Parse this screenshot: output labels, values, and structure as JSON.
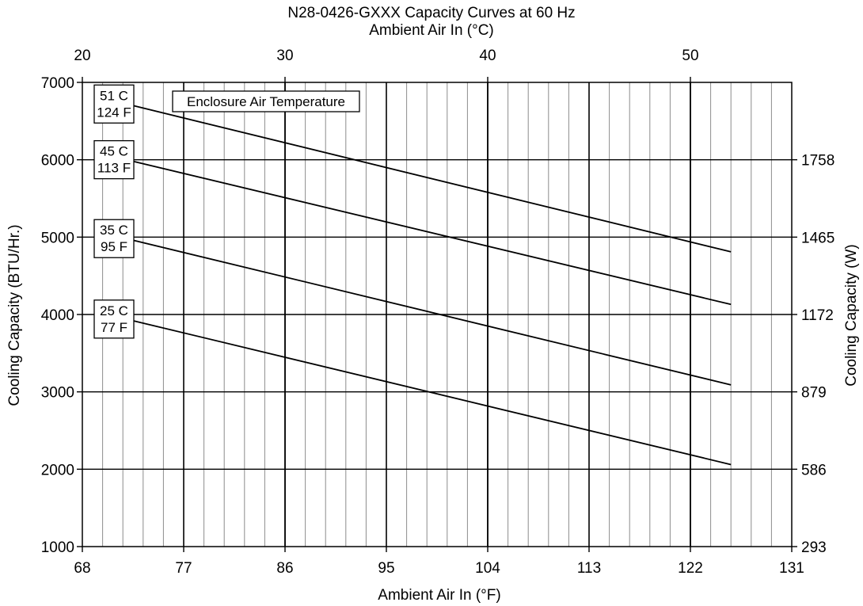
{
  "chart_data": {
    "type": "line",
    "title": "N28-0426-GXXX Capacity Curves at 60 Hz",
    "top_axis_label": "Ambient Air In (°C)",
    "top_ticks": [
      "20",
      "30",
      "40",
      "50"
    ],
    "xlabel": "Ambient Air In (°F)",
    "ylabel": "Cooling Capacity (BTU/Hr.)",
    "right_ylabel": "Cooling Capacity (W)",
    "x_ticks": [
      "68",
      "77",
      "86",
      "95",
      "104",
      "113",
      "122",
      "131"
    ],
    "y_ticks": [
      "1000",
      "2000",
      "3000",
      "4000",
      "5000",
      "6000",
      "7000"
    ],
    "right_ticks": [
      "293",
      "586",
      "879",
      "1172",
      "1465",
      "1758"
    ],
    "xlim": [
      68,
      131
    ],
    "ylim": [
      1000,
      7000
    ],
    "grid": true,
    "legend_title": "Enclosure Air Temperature",
    "series": [
      {
        "name": "51 C\n124 F",
        "x": [
          72.5,
          125.6
        ],
        "y": [
          6700,
          4810
        ]
      },
      {
        "name": "45 C\n113 F",
        "x": [
          72.5,
          125.6
        ],
        "y": [
          5980,
          4130
        ]
      },
      {
        "name": "35 C\n95 F",
        "x": [
          72.5,
          125.6
        ],
        "y": [
          4960,
          3090
        ]
      },
      {
        "name": "25 C\n77 F",
        "x": [
          72.5,
          125.6
        ],
        "y": [
          3920,
          2060
        ]
      }
    ]
  }
}
